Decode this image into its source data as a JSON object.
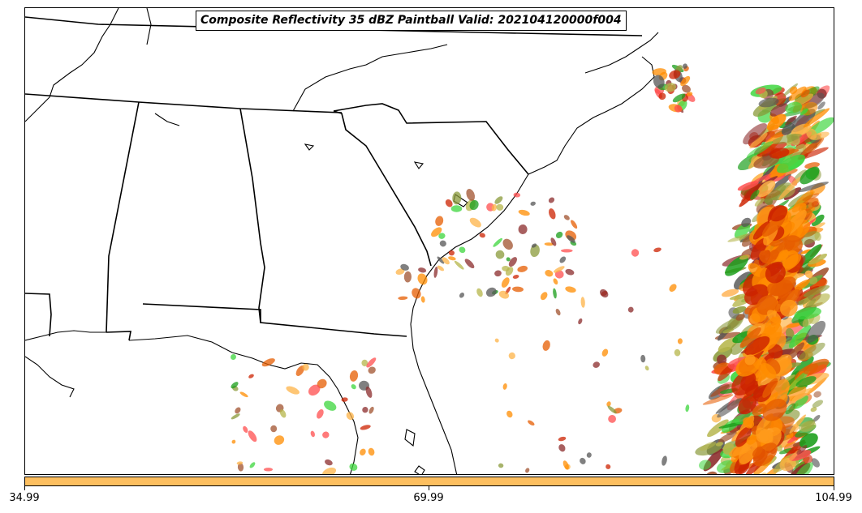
{
  "title": "Composite Reflectivity 35 dBZ Paintball Valid: 202104120000f004",
  "colorbar": {
    "color": "#fdbf5f",
    "ticks": [
      "34.99",
      "69.99",
      "104.99"
    ]
  },
  "palette": [
    "#ff8c00",
    "#e65c00",
    "#cc2200",
    "#ff4d4d",
    "#fdb347",
    "#b5b54a",
    "#8a9a3a",
    "#3cd63c",
    "#1a9e1a",
    "#8b2b2b",
    "#555555",
    "#a0522d"
  ]
}
